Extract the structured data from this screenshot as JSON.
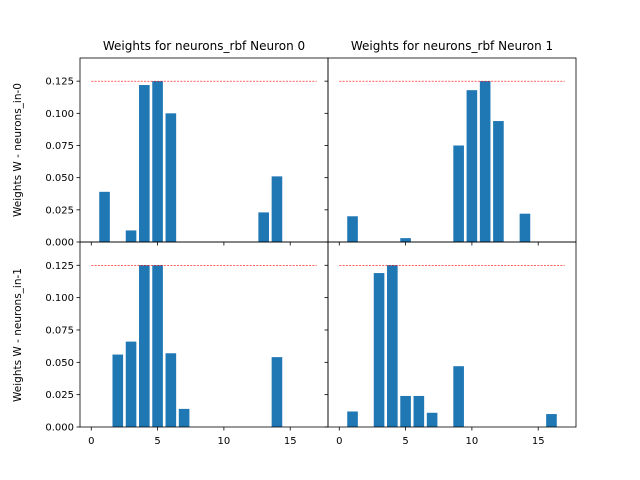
{
  "chart_data": [
    {
      "type": "bar",
      "title": "Weights for neurons_rbf Neuron 0",
      "ylabel": "Weights W - neurons_in-0",
      "xlabel": "",
      "x": [
        1,
        3,
        4,
        5,
        6,
        13,
        14
      ],
      "values": [
        0.039,
        0.009,
        0.122,
        0.125,
        0.1,
        0.023,
        0.051
      ],
      "reference_line": 0.125,
      "xlim": [
        -0.85,
        17.85
      ],
      "ylim": [
        0,
        0.143
      ],
      "yticks": [
        "0.000",
        "0.025",
        "0.050",
        "0.075",
        "0.100",
        "0.125"
      ],
      "xticks": []
    },
    {
      "type": "bar",
      "title": "Weights for neurons_rbf Neuron 1",
      "ylabel": "",
      "xlabel": "",
      "x": [
        1,
        5,
        9,
        10,
        11,
        12,
        14
      ],
      "values": [
        0.02,
        0.003,
        0.075,
        0.118,
        0.125,
        0.094,
        0.022
      ],
      "reference_line": 0.125,
      "xlim": [
        -0.85,
        17.85
      ],
      "ylim": [
        0,
        0.143
      ],
      "yticks": [],
      "xticks": []
    },
    {
      "type": "bar",
      "title": "",
      "ylabel": "Weights W - neurons_in-1",
      "xlabel": "",
      "x": [
        2,
        3,
        4,
        5,
        6,
        7,
        14
      ],
      "values": [
        0.056,
        0.066,
        0.125,
        0.125,
        0.057,
        0.014,
        0.054
      ],
      "reference_line": 0.125,
      "xlim": [
        -0.85,
        17.85
      ],
      "ylim": [
        0,
        0.143
      ],
      "yticks": [
        "0.000",
        "0.025",
        "0.050",
        "0.075",
        "0.100",
        "0.125"
      ],
      "xticks": [
        "0",
        "5",
        "10",
        "15"
      ]
    },
    {
      "type": "bar",
      "title": "",
      "ylabel": "",
      "xlabel": "",
      "x": [
        1,
        3,
        4,
        5,
        6,
        7,
        9,
        16
      ],
      "values": [
        0.012,
        0.119,
        0.125,
        0.024,
        0.024,
        0.011,
        0.047,
        0.01
      ],
      "reference_line": 0.125,
      "xlim": [
        -0.85,
        17.85
      ],
      "ylim": [
        0,
        0.143
      ],
      "yticks": [],
      "xticks": [
        "0",
        "5",
        "10",
        "15"
      ]
    }
  ],
  "colors": {
    "bar": "#1f77b4",
    "reference_line": "#ff0000",
    "axes": "#000000",
    "background": "#ffffff"
  }
}
